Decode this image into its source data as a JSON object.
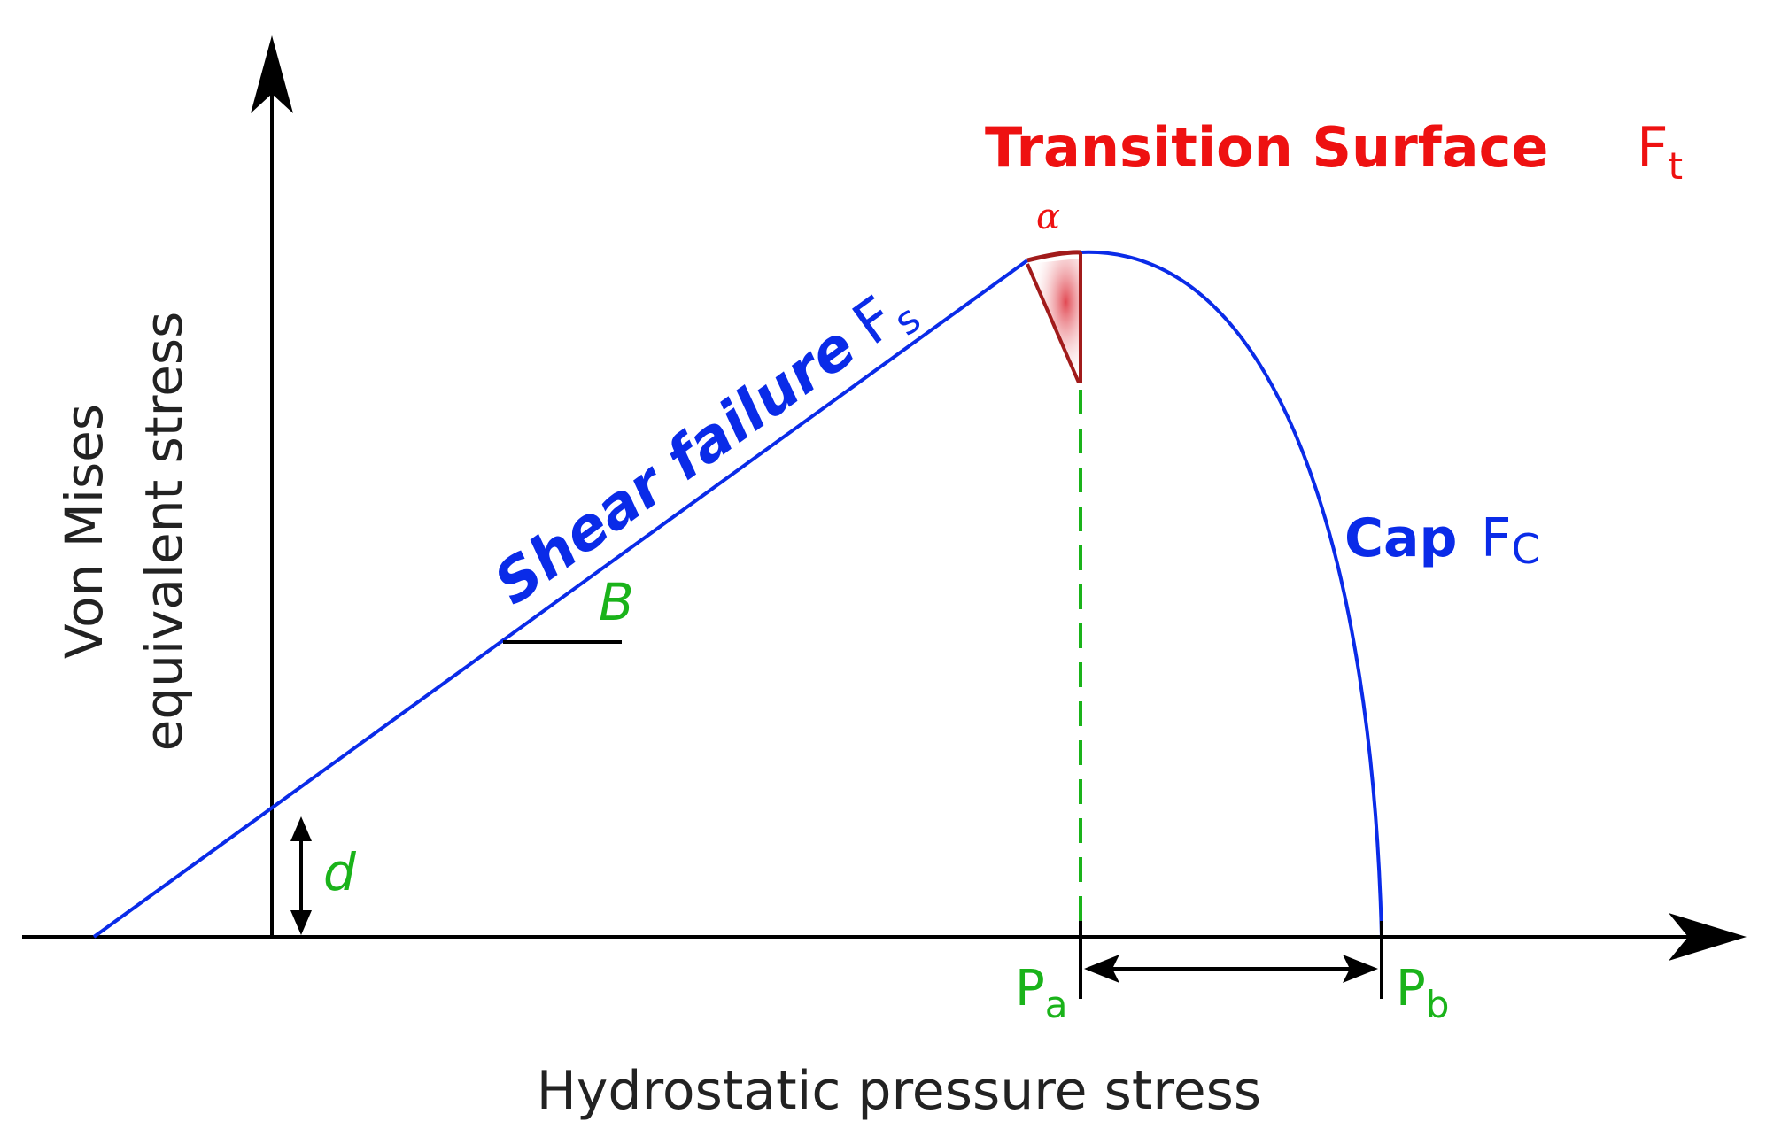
{
  "axes": {
    "y_label_line1": "Von Mises",
    "y_label_line2": "equivalent stress",
    "x_label": "Hydrostatic pressure stress"
  },
  "labels": {
    "transition_title": "Transition Surface",
    "transition_symbol": "F",
    "transition_sub": "t",
    "alpha": "α",
    "shear_title": "Shear failure",
    "shear_symbol": "F",
    "shear_sub": "s",
    "cap_title": "Cap",
    "cap_symbol": "F",
    "cap_sub": "C",
    "slope": "B",
    "cohesion": "d",
    "pa_symbol": "P",
    "pa_sub": "a",
    "pb_symbol": "P",
    "pb_sub": "b"
  },
  "colors": {
    "axis": "#000000",
    "blue": "#0a2be8",
    "red": "#ee1111",
    "dark_red": "#a11b1b",
    "green": "#1ab31a"
  }
}
